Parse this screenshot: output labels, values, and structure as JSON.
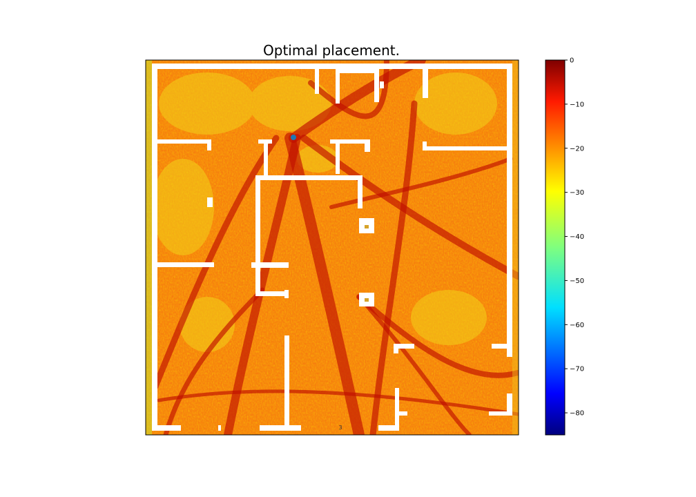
{
  "chart_data": {
    "type": "heatmap",
    "title": "Optimal placement.",
    "xlabel": "",
    "ylabel": "",
    "axes_ticks_visible": false,
    "colormap": "jet",
    "colorbar": {
      "range": [
        -85,
        0
      ],
      "ticks": [
        0,
        -10,
        -20,
        -30,
        -40,
        -50,
        -60,
        -70,
        -80
      ],
      "tick_labels": [
        "0",
        "−10",
        "−20",
        "−30",
        "−40",
        "−50",
        "−60",
        "−70",
        "−80"
      ]
    },
    "heatmap_description": "Signal strength map of a floor plan; values mostly between -30 and -5, white regions are walls.",
    "marker": {
      "label": "optimal placement point",
      "color": "#1f77b4"
    },
    "small_text_near_bottom": "3"
  }
}
